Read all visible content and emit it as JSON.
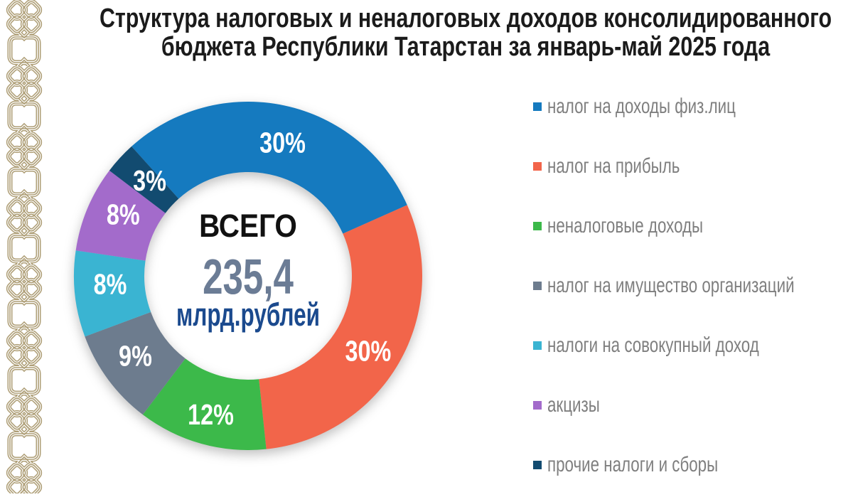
{
  "title": {
    "line1": "Структура налоговых и неналоговых доходов консолидированного",
    "line2": "бюджета Республики Татарстан за январь-май 2025 года"
  },
  "chart_data": {
    "type": "pie",
    "subtype": "donut",
    "title": "Структура налоговых и неналоговых доходов консолидированного бюджета Республики Татарстан за январь-май 2025 года",
    "center": {
      "label": "ВСЕГО",
      "value": "235,4",
      "unit": "млрд.рублей"
    },
    "start_angle_deg": -42,
    "value_suffix": "%",
    "legend_position": "right",
    "series": [
      {
        "label": "налог на доходы физ.лиц",
        "value": 30,
        "pct_label": "30%",
        "color": "#157abf"
      },
      {
        "label": "налог на прибыль",
        "value": 30,
        "pct_label": "30%",
        "color": "#f2654a"
      },
      {
        "label": "неналоговые доходы",
        "value": 12,
        "pct_label": "12%",
        "color": "#3cb94a"
      },
      {
        "label": "налог на имущество организаций",
        "value": 9,
        "pct_label": "9%",
        "color": "#6d7c8e"
      },
      {
        "label": "налоги на совокупный доход",
        "value": 8,
        "pct_label": "8%",
        "color": "#3ab4d2"
      },
      {
        "label": "акцизы",
        "value": 8,
        "pct_label": "8%",
        "color": "#a36bcb"
      },
      {
        "label": "прочие налоги и сборы",
        "value": 3,
        "pct_label": "3%",
        "color": "#124b70"
      }
    ]
  },
  "colors": {
    "center_label": "#111111",
    "center_value": "#6b7c95",
    "center_unit": "#1b4a8e",
    "legend_text": "#7f7f7f",
    "ornament": "#ae9e76"
  }
}
